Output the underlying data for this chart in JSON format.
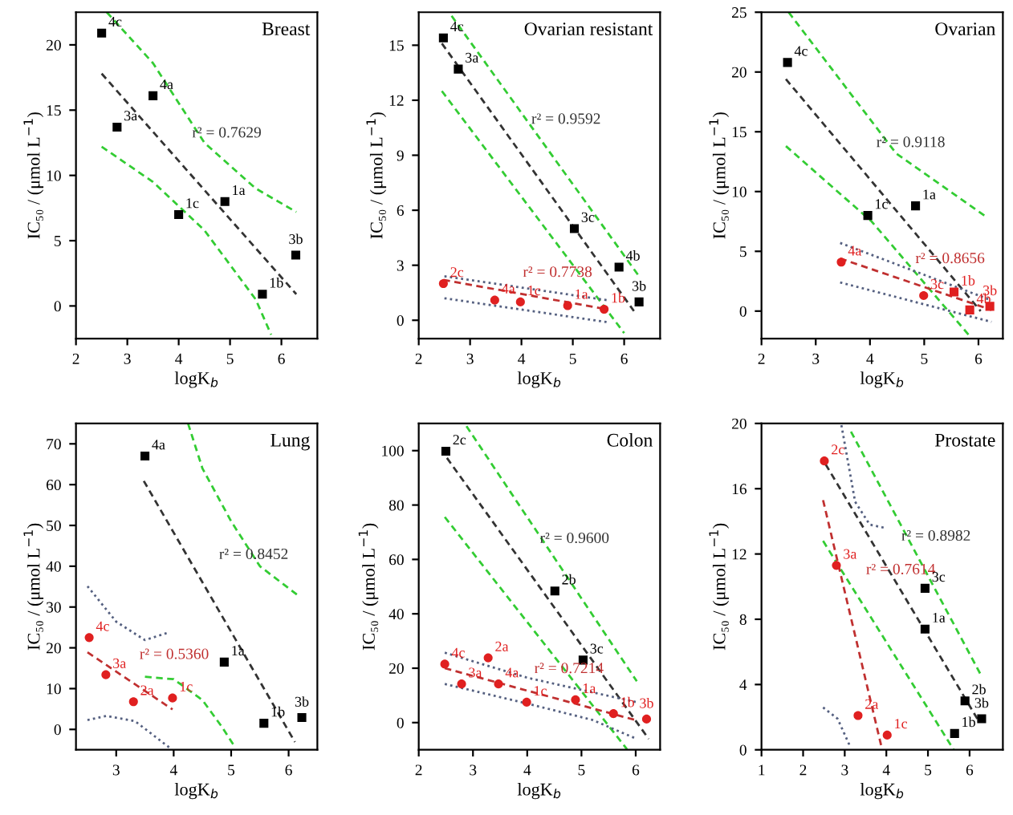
{
  "chart_data": [
    {
      "type": "scatter",
      "title": "Breast",
      "xlabel": "logK$_{b}$",
      "ylabel": "IC₅₀ / (μmol L$^{−1}$)",
      "xlim": [
        2,
        6.7
      ],
      "ylim": [
        -2.5,
        22.5
      ],
      "xticks": [
        2,
        3,
        4,
        5,
        6
      ],
      "yticks": [
        0,
        5,
        10,
        15,
        20
      ],
      "annotations": [
        {
          "text": "4c",
          "x": 2.5,
          "y": 20.9
        },
        {
          "text": "4a",
          "x": 3.5,
          "y": 16.1
        },
        {
          "text": "3a",
          "x": 2.8,
          "y": 13.7
        },
        {
          "text": "1a",
          "x": 4.9,
          "y": 8.0
        },
        {
          "text": "1c",
          "x": 4.0,
          "y": 7.0
        },
        {
          "text": "1b",
          "x": 5.63,
          "y": 0.9
        },
        {
          "text": "3b",
          "x": 6.28,
          "y": 3.9
        }
      ],
      "series": [
        {
          "marker": "square",
          "color": "#000000",
          "x": [
            2.5,
            3.5,
            2.8,
            4.9,
            4.0,
            5.63,
            6.28
          ],
          "values": [
            20.9,
            16.1,
            13.7,
            8.0,
            7.0,
            0.9,
            3.9
          ]
        },
        {
          "type": "line",
          "name": "r² = 0.7629",
          "line_style": "dashed",
          "color": "#333333",
          "x": [
            2.5,
            6.29
          ],
          "values": [
            17.8,
            0.9
          ]
        },
        {
          "type": "line",
          "line_style": "dashed",
          "color": "#33cc33",
          "x": [
            2.6,
            3.5,
            4.5,
            5.5,
            6.29
          ],
          "values": [
            22.5,
            18.6,
            12.5,
            9.0,
            7.2
          ]
        },
        {
          "type": "line",
          "line_style": "dashed",
          "color": "#33cc33",
          "x": [
            2.5,
            3.5,
            4.5,
            5.5,
            5.8
          ],
          "values": [
            12.2,
            9.5,
            5.8,
            0.5,
            -2.2
          ]
        }
      ]
    },
    {
      "type": "scatter",
      "title": "Ovarian resistant",
      "xlabel": "logK$_{b}$",
      "ylabel": "IC₅₀ / (μmol L$^{−1}$)",
      "xlim": [
        2,
        6.7
      ],
      "ylim": [
        -1,
        16.8
      ],
      "xticks": [
        2,
        3,
        4,
        5,
        6
      ],
      "yticks": [
        0,
        3,
        6,
        9,
        12,
        15
      ],
      "annotations": [
        {
          "text": "4c",
          "x": 2.48,
          "y": 15.4
        },
        {
          "text": "3a",
          "x": 2.77,
          "y": 13.7
        },
        {
          "text": "3c",
          "x": 5.03,
          "y": 5.0
        },
        {
          "text": "4b",
          "x": 5.9,
          "y": 2.9
        },
        {
          "text": "3b",
          "x": 6.29,
          "y": 1.0
        },
        {
          "text": "2c",
          "x": 2.48,
          "y": 2.0
        },
        {
          "text": "4a",
          "x": 3.48,
          "y": 1.1
        },
        {
          "text": "1c",
          "x": 3.98,
          "y": 1.0
        },
        {
          "text": "1a",
          "x": 4.9,
          "y": 0.8
        },
        {
          "text": "1b",
          "x": 5.61,
          "y": 0.6
        }
      ],
      "series": [
        {
          "marker": "square",
          "color": "#000000",
          "x": [
            2.48,
            2.77,
            5.03,
            5.9,
            6.29
          ],
          "values": [
            15.4,
            13.7,
            5.0,
            2.9,
            1.0
          ]
        },
        {
          "marker": "circle",
          "color": "#e02020",
          "x": [
            2.48,
            3.48,
            3.98,
            4.9,
            5.61
          ],
          "values": [
            2.0,
            1.1,
            1.0,
            0.8,
            0.6
          ]
        },
        {
          "type": "line",
          "name": "r² = 0.9592",
          "line_style": "dashed",
          "color": "#333333",
          "x": [
            2.45,
            6.19
          ],
          "values": [
            15.1,
            0.5
          ]
        },
        {
          "type": "line",
          "line_style": "dashed",
          "color": "#33cc33",
          "x": [
            2.64,
            6.29
          ],
          "values": [
            16.6,
            2.4
          ]
        },
        {
          "type": "line",
          "line_style": "dashed",
          "color": "#33cc33",
          "x": [
            2.45,
            6.0
          ],
          "values": [
            12.5,
            -0.7
          ]
        },
        {
          "type": "line",
          "name": "r² = 0.7738",
          "line_style": "dashed",
          "color": "#c03030",
          "x": [
            2.48,
            5.66
          ],
          "values": [
            2.2,
            0.6
          ]
        },
        {
          "type": "line",
          "line_style": "dotted",
          "color": "#556080",
          "x": [
            2.5,
            5.66
          ],
          "values": [
            2.4,
            1.1
          ]
        },
        {
          "type": "line",
          "line_style": "dotted",
          "color": "#556080",
          "x": [
            2.5,
            5.66
          ],
          "values": [
            1.2,
            -0.1
          ]
        }
      ]
    },
    {
      "type": "scatter",
      "title": "Ovarian",
      "xlabel": "logK$_{b}$",
      "ylabel": "IC₅₀ / (μmol L$^{−1}$)",
      "xlim": [
        2,
        6.45
      ],
      "ylim": [
        -2.3,
        25
      ],
      "xticks": [
        2,
        3,
        4,
        5,
        6
      ],
      "yticks": [
        0,
        5,
        10,
        15,
        20,
        25
      ],
      "annotations": [
        {
          "text": "4c",
          "x": 2.48,
          "y": 20.8
        },
        {
          "text": "1c",
          "x": 3.96,
          "y": 8.0
        },
        {
          "text": "1a",
          "x": 4.84,
          "y": 8.8
        },
        {
          "text": "4a",
          "x": 3.47,
          "y": 4.1
        },
        {
          "text": "3c",
          "x": 4.99,
          "y": 1.3
        },
        {
          "text": "1b",
          "x": 5.55,
          "y": 1.6
        },
        {
          "text": "4b",
          "x": 5.84,
          "y": 0.1
        },
        {
          "text": "3b",
          "x": 6.21,
          "y": 0.4
        }
      ],
      "series": [
        {
          "marker": "square",
          "color": "#000000",
          "x": [
            2.48,
            3.96,
            4.84
          ],
          "values": [
            20.8,
            8.0,
            8.8
          ]
        },
        {
          "marker": "circle",
          "color": "#e02020",
          "x": [
            3.47,
            4.99
          ],
          "values": [
            4.1,
            1.3
          ]
        },
        {
          "marker": "square",
          "color": "#e02020",
          "x": [
            5.55,
            5.84,
            6.21
          ],
          "values": [
            1.6,
            0.1,
            0.4
          ]
        },
        {
          "type": "line",
          "name": "r² = 0.9118",
          "line_style": "dashed",
          "color": "#333333",
          "x": [
            2.45,
            6.04
          ],
          "values": [
            19.4,
            0
          ]
        },
        {
          "type": "line",
          "line_style": "dashed",
          "color": "#33cc33",
          "x": [
            2.5,
            4.48,
            6.17
          ],
          "values": [
            25,
            13.2,
            7.8
          ]
        },
        {
          "type": "line",
          "line_style": "dashed",
          "color": "#33cc33",
          "x": [
            2.45,
            4.03,
            5.86
          ],
          "values": [
            13.8,
            7.5,
            -2.2
          ]
        },
        {
          "type": "line",
          "name": "r² = 0.8656",
          "line_style": "dashed",
          "color": "#c03030",
          "x": [
            3.45,
            6.24
          ],
          "values": [
            4.4,
            0.1
          ]
        },
        {
          "type": "line",
          "line_style": "dotted",
          "color": "#556080",
          "x": [
            3.45,
            6.24
          ],
          "values": [
            5.7,
            0.9
          ]
        },
        {
          "type": "line",
          "line_style": "dotted",
          "color": "#556080",
          "x": [
            3.45,
            6.24
          ],
          "values": [
            2.4,
            -0.9
          ]
        }
      ]
    },
    {
      "type": "scatter",
      "title": "Lung",
      "xlabel": "logK$_{b}$",
      "ylabel": "IC₅₀ / (μmol L$^{−1}$)",
      "xlim": [
        2.3,
        6.5
      ],
      "ylim": [
        -5,
        75
      ],
      "xticks": [
        3,
        4,
        5,
        6
      ],
      "yticks": [
        0,
        10,
        20,
        30,
        40,
        50,
        60,
        70
      ],
      "annotations": [
        {
          "text": "4a",
          "x": 3.5,
          "y": 67
        },
        {
          "text": "1a",
          "x": 4.88,
          "y": 16.5
        },
        {
          "text": "1b",
          "x": 5.57,
          "y": 1.5
        },
        {
          "text": "3b",
          "x": 6.23,
          "y": 2.9
        },
        {
          "text": "4c",
          "x": 2.53,
          "y": 22.5
        },
        {
          "text": "3a",
          "x": 2.82,
          "y": 13.4
        },
        {
          "text": "2a",
          "x": 3.3,
          "y": 6.8
        },
        {
          "text": "1c",
          "x": 3.98,
          "y": 7.7
        }
      ],
      "series": [
        {
          "marker": "square",
          "color": "#000000",
          "x": [
            3.5,
            4.88,
            5.57,
            6.23
          ],
          "values": [
            67,
            16.5,
            1.5,
            2.9
          ]
        },
        {
          "marker": "circle",
          "color": "#e02020",
          "x": [
            2.53,
            2.82,
            3.3,
            3.98
          ],
          "values": [
            22.5,
            13.4,
            6.8,
            7.7
          ]
        },
        {
          "type": "line",
          "name": "r² = 0.8452",
          "line_style": "dashed",
          "color": "#333333",
          "x": [
            3.48,
            6.11
          ],
          "values": [
            60.9,
            -3.1
          ]
        },
        {
          "type": "line",
          "line_style": "dashed",
          "color": "#33cc33",
          "x": [
            4.25,
            4.5,
            5.0,
            5.5,
            6.15
          ],
          "values": [
            75,
            64,
            51,
            40,
            33
          ]
        },
        {
          "type": "line",
          "line_style": "dashed",
          "color": "#33cc33",
          "x": [
            3.5,
            4.0,
            4.5,
            4.83,
            5.07
          ],
          "values": [
            12.9,
            12.3,
            7.2,
            0.8,
            -4.4
          ]
        },
        {
          "type": "line",
          "name": "r² = 0.5360",
          "line_style": "dashed",
          "color": "#c03030",
          "x": [
            2.5,
            3.98
          ],
          "values": [
            18.9,
            4.9
          ]
        },
        {
          "type": "line",
          "line_style": "dotted",
          "color": "#556080",
          "x": [
            2.5,
            3.0,
            3.5,
            3.92
          ],
          "values": [
            35.1,
            26.4,
            21.9,
            23.8
          ]
        },
        {
          "type": "line",
          "line_style": "dotted",
          "color": "#556080",
          "x": [
            2.5,
            2.83,
            3.33,
            3.92
          ],
          "values": [
            2.3,
            3.3,
            2.0,
            -4.4
          ]
        }
      ]
    },
    {
      "type": "scatter",
      "title": "Colon",
      "xlabel": "logK$_{b}$",
      "ylabel": "IC₅₀ / (μmol L$^{−1}$)",
      "xlim": [
        2,
        6.45
      ],
      "ylim": [
        -10,
        110
      ],
      "xticks": [
        2,
        3,
        4,
        5,
        6
      ],
      "yticks": [
        0,
        20,
        40,
        60,
        80,
        100
      ],
      "annotations": [
        {
          "text": "2c",
          "x": 2.5,
          "y": 99.8
        },
        {
          "text": "2b",
          "x": 4.51,
          "y": 48.4
        },
        {
          "text": "3c",
          "x": 5.03,
          "y": 23.0
        },
        {
          "text": "4c",
          "x": 2.48,
          "y": 21.5
        },
        {
          "text": "3a",
          "x": 2.79,
          "y": 14.2
        },
        {
          "text": "2a",
          "x": 3.28,
          "y": 23.8
        },
        {
          "text": "4a",
          "x": 3.47,
          "y": 14.2
        },
        {
          "text": "1c",
          "x": 3.99,
          "y": 7.5
        },
        {
          "text": "1a",
          "x": 4.89,
          "y": 8.4
        },
        {
          "text": "1b",
          "x": 5.59,
          "y": 3.3
        },
        {
          "text": "3b",
          "x": 6.2,
          "y": 1.3
        }
      ],
      "series": [
        {
          "marker": "square",
          "color": "#000000",
          "x": [
            2.5,
            4.51,
            5.03
          ],
          "values": [
            99.8,
            48.4,
            23.0
          ]
        },
        {
          "marker": "circle",
          "color": "#e02020",
          "x": [
            2.48,
            2.79,
            3.28,
            3.47,
            3.99,
            4.89,
            5.59,
            6.2
          ],
          "values": [
            21.5,
            14.2,
            23.8,
            14.2,
            7.5,
            8.4,
            3.3,
            1.3
          ]
        },
        {
          "type": "line",
          "name": "r² = 0.9600",
          "line_style": "dashed",
          "color": "#333333",
          "x": [
            2.52,
            6.24
          ],
          "values": [
            97.3,
            -6
          ]
        },
        {
          "type": "line",
          "line_style": "dashed",
          "color": "#33cc33",
          "x": [
            2.88,
            6.02
          ],
          "values": [
            109,
            15.2
          ]
        },
        {
          "type": "line",
          "line_style": "dashed",
          "color": "#33cc33",
          "x": [
            2.48,
            5.84
          ],
          "values": [
            75.6,
            -9.8
          ]
        },
        {
          "type": "line",
          "name": "r² = 0.7214",
          "line_style": "dashed",
          "color": "#c03030",
          "x": [
            2.48,
            6.02
          ],
          "values": [
            20,
            0.8
          ]
        },
        {
          "type": "line",
          "line_style": "dotted",
          "color": "#556080",
          "x": [
            2.48,
            4.0,
            6.02
          ],
          "values": [
            25.7,
            16.5,
            7.5
          ]
        },
        {
          "type": "line",
          "line_style": "dotted",
          "color": "#556080",
          "x": [
            2.48,
            4.0,
            5.2,
            6.02
          ],
          "values": [
            14.2,
            7.0,
            1.0,
            -6
          ]
        }
      ]
    },
    {
      "type": "scatter",
      "title": "Prostate",
      "xlabel": "logK$_{b}$",
      "ylabel": "IC₅₀ / (μmol L$^{−1}$)",
      "xlim": [
        1,
        6.8
      ],
      "ylim": [
        0,
        20
      ],
      "xticks": [
        1,
        2,
        3,
        4,
        5,
        6
      ],
      "yticks": [
        0,
        4,
        8,
        12,
        16,
        20
      ],
      "annotations": [
        {
          "text": "3c",
          "x": 4.93,
          "y": 9.9
        },
        {
          "text": "1a",
          "x": 4.93,
          "y": 7.4
        },
        {
          "text": "2b",
          "x": 5.89,
          "y": 3.0
        },
        {
          "text": "3b",
          "x": 6.29,
          "y": 1.9
        },
        {
          "text": "1b",
          "x": 5.64,
          "y": 1.0
        },
        {
          "text": "2c",
          "x": 2.51,
          "y": 17.7
        },
        {
          "text": "3a",
          "x": 2.8,
          "y": 11.3
        },
        {
          "text": "2a",
          "x": 3.32,
          "y": 2.1
        },
        {
          "text": "1c",
          "x": 4.02,
          "y": 0.9
        }
      ],
      "series": [
        {
          "marker": "square",
          "color": "#000000",
          "x": [
            4.93,
            4.93,
            5.89,
            6.29,
            5.64
          ],
          "values": [
            9.9,
            7.4,
            3.0,
            1.9,
            1.0
          ]
        },
        {
          "marker": "circle",
          "color": "#e02020",
          "x": [
            2.51,
            2.8,
            3.32,
            4.02
          ],
          "values": [
            17.7,
            11.3,
            2.1,
            0.9
          ]
        },
        {
          "type": "line",
          "name": "r² = 0.8982",
          "line_style": "dashed",
          "color": "#333333",
          "x": [
            2.54,
            6.21
          ],
          "values": [
            17.5,
            1.8
          ]
        },
        {
          "type": "line",
          "line_style": "dashed",
          "color": "#33cc33",
          "x": [
            3.15,
            6.29
          ],
          "values": [
            19.5,
            4.5
          ]
        },
        {
          "type": "line",
          "line_style": "dashed",
          "color": "#33cc33",
          "x": [
            2.48,
            5.62
          ],
          "values": [
            12.8,
            0
          ]
        },
        {
          "type": "line",
          "line_style": "dotted",
          "color": "#556080",
          "x": [
            2.92,
            3.25,
            3.6,
            3.96
          ],
          "values": [
            19.9,
            15.2,
            13.8,
            13.6
          ]
        },
        {
          "type": "line",
          "line_style": "dotted",
          "color": "#556080",
          "x": [
            2.48,
            2.83,
            3.13
          ],
          "values": [
            2.6,
            1.9,
            0.2
          ]
        },
        {
          "type": "line",
          "name": "r² = 0.7614",
          "line_style": "dashed",
          "color": "#c03030",
          "x": [
            2.48,
            3.9
          ],
          "values": [
            15.3,
            0
          ]
        }
      ]
    }
  ]
}
